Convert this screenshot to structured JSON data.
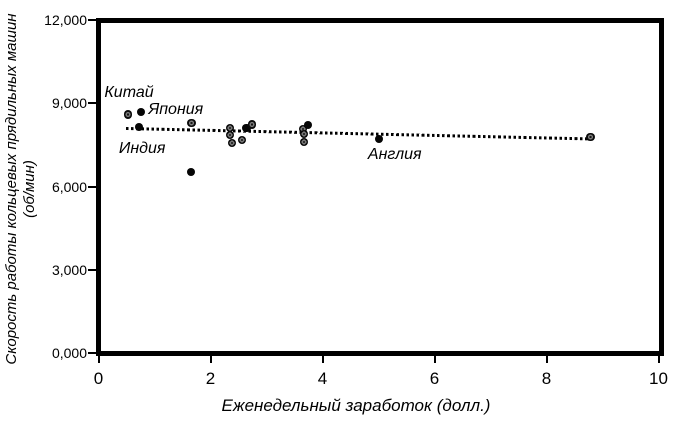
{
  "chart_data": {
    "type": "scatter",
    "title": "",
    "xlabel": "Еженедельный заработок (долл.)",
    "ylabel_line1": "Скорость работы кольцевых прядильных машин",
    "ylabel_line2": "(об/мин)",
    "xlim": [
      0,
      10
    ],
    "ylim": [
      0,
      12000
    ],
    "grid": false,
    "legend_position": "none",
    "x_ticks": [
      0,
      2,
      4,
      6,
      8,
      10
    ],
    "x_tick_labels": [
      "0",
      "2",
      "4",
      "6",
      "8",
      "10"
    ],
    "y_ticks": [
      0,
      3000,
      6000,
      9000,
      12000
    ],
    "y_tick_labels": [
      "0,000",
      "3,000",
      "6,000",
      "9,000",
      "12,000"
    ],
    "point_color": "#000000",
    "points": [
      {
        "x": 0.53,
        "y": 8600,
        "style": "hatched",
        "country": "Китай"
      },
      {
        "x": 0.76,
        "y": 8690,
        "style": "solid",
        "country": "Япония"
      },
      {
        "x": 0.72,
        "y": 8150,
        "style": "solid",
        "country": "Индия"
      },
      {
        "x": 1.66,
        "y": 8290,
        "style": "hatched"
      },
      {
        "x": 1.65,
        "y": 6530,
        "style": "solid"
      },
      {
        "x": 2.35,
        "y": 8110,
        "style": "hatched"
      },
      {
        "x": 2.35,
        "y": 7860,
        "style": "hatched"
      },
      {
        "x": 2.38,
        "y": 7570,
        "style": "hatched"
      },
      {
        "x": 2.56,
        "y": 7680,
        "style": "hatched"
      },
      {
        "x": 2.64,
        "y": 8110,
        "style": "solid"
      },
      {
        "x": 2.74,
        "y": 8230,
        "style": "hatched"
      },
      {
        "x": 3.65,
        "y": 8080,
        "style": "hatched"
      },
      {
        "x": 3.74,
        "y": 8220,
        "style": "solid"
      },
      {
        "x": 3.67,
        "y": 7890,
        "style": "hatched"
      },
      {
        "x": 3.67,
        "y": 7600,
        "style": "hatched"
      },
      {
        "x": 5.01,
        "y": 7720,
        "style": "solid",
        "country": "Англия"
      },
      {
        "x": 8.79,
        "y": 7790,
        "style": "hatched"
      }
    ],
    "annotations": [
      {
        "text": "Китай",
        "x": 0.545,
        "y": 9370
      },
      {
        "text": "Япония",
        "x": 1.38,
        "y": 8760
      },
      {
        "text": "Индия",
        "x": 0.78,
        "y": 7350
      },
      {
        "text": "Англия",
        "x": 5.29,
        "y": 7120
      }
    ],
    "trendline": {
      "style": "dotted",
      "x1": 0.49,
      "y1": 8090,
      "x2": 8.85,
      "y2": 7710
    }
  }
}
